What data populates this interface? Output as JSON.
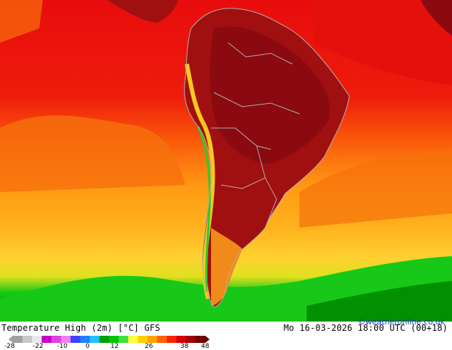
{
  "map": {
    "product": "Temperature High (2m) [°C] GFS",
    "valid_time": "Mo 16-03-2026 18:00 UTC (00+18)",
    "credit": "©weatheronline.co.uk",
    "region": "South America",
    "colors": {
      "hot_land": "#a01010",
      "hotter_core": "#8a0a10",
      "sea_warm": "#e80c0c",
      "sea_mid": "#fa5a0a",
      "sea_orange": "#ff9a14",
      "sea_yellow": "#ffc828",
      "cool_green": "#14c814",
      "dark_green": "#008c00",
      "borders": "#b0b0b0"
    }
  },
  "legend": {
    "ticks": [
      "-28",
      "-22",
      "-10",
      "0",
      "12",
      "26",
      "38",
      "48"
    ],
    "colors": [
      "#a0a0a0",
      "#c8c8c8",
      "#e8e8e8",
      "#c800c8",
      "#e040e0",
      "#f080f0",
      "#4040ff",
      "#2080ff",
      "#20c0ff",
      "#00a000",
      "#00c800",
      "#40e040",
      "#ffff40",
      "#ffd000",
      "#ffa000",
      "#ff6000",
      "#ff2000",
      "#d00000",
      "#a00000",
      "#700000"
    ]
  }
}
